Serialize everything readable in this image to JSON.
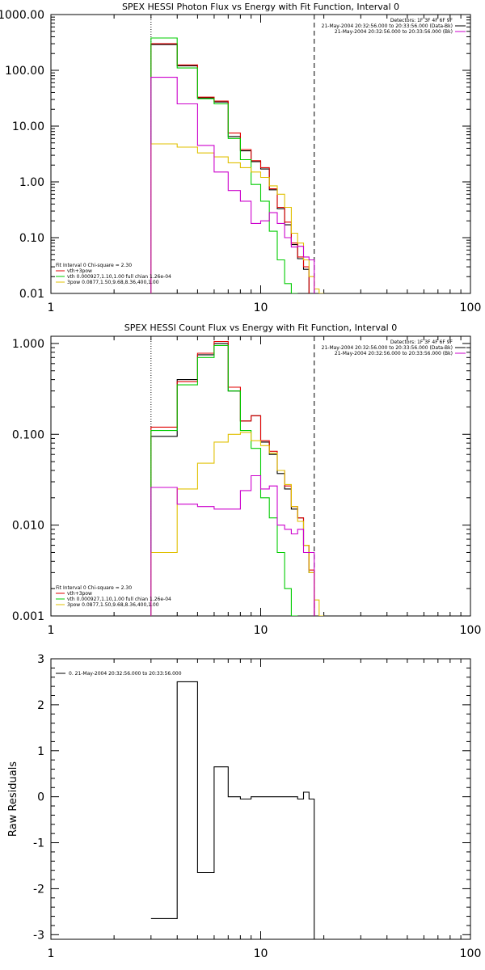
{
  "chart_data": [
    {
      "type": "line",
      "title": "SPEX HESSI Photon Flux vs Energy with Fit Function, Interval 0",
      "xscale": "log",
      "yscale": "log",
      "xlim": [
        1,
        100
      ],
      "ylim": [
        0.01,
        1000
      ],
      "x_ticks": [
        1,
        10,
        100
      ],
      "x_tick_labels": [
        "1",
        "10",
        "100"
      ],
      "y_ticks": [
        0.01,
        0.1,
        1,
        10,
        100,
        1000
      ],
      "y_tick_labels": [
        "0.01",
        "0.10",
        "1.00",
        "10.00",
        "100.00",
        "1000.00"
      ],
      "x_edges": [
        3,
        4,
        5,
        6,
        7,
        8,
        9,
        10,
        11,
        12,
        13,
        14,
        15,
        16,
        17,
        18,
        19,
        20
      ],
      "series": [
        {
          "name": "",
          "color": "#000000",
          "values": [
            290,
            120,
            32,
            27,
            6.5,
            3.6,
            2.3,
            1.7,
            0.72,
            0.33,
            0.17,
            0.075,
            0.042,
            0.027,
            null,
            null,
            null
          ]
        },
        {
          "name": "vth+3pow",
          "color": "#e00000",
          "values": [
            300,
            125,
            33,
            28,
            7.5,
            3.8,
            2.4,
            1.8,
            0.75,
            0.35,
            0.19,
            0.08,
            0.045,
            0.03,
            null,
            null,
            null
          ]
        },
        {
          "name": "vth 0.000927,1.10,1.00  full chian 1.26e-04",
          "color": "#00cc00",
          "values": [
            380,
            110,
            31,
            25,
            6.0,
            2.5,
            0.9,
            0.45,
            0.13,
            0.04,
            0.015,
            0.008,
            null,
            null,
            null,
            null,
            null
          ]
        },
        {
          "name": "3pow 0.0877,1.50,9.68,8.36,400,1.00",
          "color": "#e0c000",
          "values": [
            4.8,
            4.2,
            3.3,
            2.8,
            2.2,
            1.8,
            1.5,
            1.2,
            0.85,
            0.6,
            0.35,
            0.12,
            0.08,
            0.04,
            0.02,
            0.012,
            0.01
          ]
        },
        {
          "name": "",
          "color": "#cc00cc",
          "values": [
            75,
            25,
            4.5,
            1.5,
            0.7,
            0.45,
            0.18,
            0.2,
            0.28,
            0.18,
            0.1,
            0.068,
            0.07,
            0.045,
            0.04,
            null,
            null
          ]
        }
      ],
      "vlines": [
        {
          "x": 3,
          "style": "dotted"
        },
        {
          "x": 18,
          "style": "dashed"
        }
      ],
      "legend_top_right": [
        "Detectors: 1F 3F 4F 6F 9F",
        "21-May-2004 20:32:56.000 to 20:33:56.000 (Data-Bk)",
        "21-May-2004 20:32:56.000 to 20:33:56.000 (Bk)"
      ],
      "legend_bottom_left": [
        "Fit Interval 0   Chi-square = 2.30",
        "vth+3pow",
        "vth 0.000927,1.10,1.00  full chian 1.26e-04",
        "3pow 0.0877,1.50,9.68,8.36,400,1.00"
      ],
      "grid": false
    },
    {
      "type": "line",
      "title": "SPEX HESSI Count Flux vs Energy with Fit Function, Interval 0",
      "xscale": "log",
      "yscale": "log",
      "xlim": [
        1,
        100
      ],
      "ylim": [
        0.001,
        1.2
      ],
      "x_ticks": [
        1,
        10,
        100
      ],
      "x_tick_labels": [
        "1",
        "10",
        "100"
      ],
      "y_ticks": [
        0.001,
        0.01,
        0.1,
        1
      ],
      "y_tick_labels": [
        "0.001",
        "0.010",
        "0.100",
        "1.000"
      ],
      "x_edges": [
        3,
        4,
        5,
        6,
        7,
        8,
        9,
        10,
        11,
        12,
        13,
        14,
        15,
        16,
        17,
        18,
        19,
        20
      ],
      "series": [
        {
          "name": "",
          "color": "#000000",
          "values": [
            0.095,
            0.4,
            0.75,
            1.0,
            0.3,
            0.14,
            0.16,
            0.082,
            0.06,
            0.037,
            0.025,
            0.015,
            0.012,
            0.006,
            0.003,
            null,
            null
          ]
        },
        {
          "name": "vth+3pow",
          "color": "#e00000",
          "values": [
            0.12,
            0.38,
            0.78,
            1.05,
            0.33,
            0.14,
            0.16,
            0.085,
            0.065,
            0.04,
            0.027,
            0.016,
            0.012,
            0.006,
            0.0032,
            null,
            null
          ]
        },
        {
          "name": "vth 0.000927,1.10,1.00  full chian 1.26e-04",
          "color": "#00cc00",
          "values": [
            0.11,
            0.35,
            0.7,
            0.95,
            0.3,
            0.11,
            0.07,
            0.02,
            0.012,
            0.005,
            0.002,
            0.001,
            null,
            null,
            null,
            null,
            null
          ]
        },
        {
          "name": "3pow 0.0877,1.50,9.68,8.36,400,1.00",
          "color": "#e0c000",
          "values": [
            0.005,
            0.025,
            0.048,
            0.082,
            0.1,
            0.105,
            0.085,
            0.075,
            0.062,
            0.04,
            0.028,
            0.016,
            0.011,
            0.006,
            0.003,
            0.0015,
            0.001
          ]
        },
        {
          "name": "",
          "color": "#cc00cc",
          "values": [
            0.026,
            0.017,
            0.016,
            0.015,
            0.015,
            0.024,
            0.035,
            0.025,
            0.027,
            0.01,
            0.009,
            0.008,
            0.009,
            0.005,
            0.005,
            null,
            null
          ]
        }
      ],
      "vlines": [
        {
          "x": 3,
          "style": "dotted"
        },
        {
          "x": 18,
          "style": "dashed"
        }
      ],
      "legend_top_right": [
        "Detectors: 1F 3F 4F 6F 9F",
        "21-May-2004 20:32:56.000 to 20:33:56.000 (Data-Bk)",
        "21-May-2004 20:32:56.000 to 20:33:56.000 (Bk)"
      ],
      "legend_bottom_left": [
        "Fit Interval 0   Chi-square = 2.30",
        "vth+3pow",
        "vth 0.000927,1.10,1.00  full chian 1.26e-04",
        "3pow 0.0877,1.50,9.68,8.36,400,1.00"
      ],
      "grid": false
    },
    {
      "type": "line",
      "title": "",
      "ylabel": "Raw Residuals",
      "xscale": "log",
      "yscale": "linear",
      "xlim": [
        1,
        100
      ],
      "ylim": [
        -3.1,
        3
      ],
      "x_ticks": [
        1,
        10,
        100
      ],
      "x_tick_labels": [
        "1",
        "10",
        "100"
      ],
      "y_ticks": [
        -3,
        -2,
        -1,
        0,
        1,
        2,
        3
      ],
      "y_tick_labels": [
        "-3",
        "-2",
        "-1",
        "0",
        "1",
        "2",
        "3"
      ],
      "x_edges": [
        3,
        4,
        5,
        6,
        7,
        8,
        9,
        10,
        11,
        12,
        13,
        14,
        15,
        16,
        17,
        18
      ],
      "series": [
        {
          "name": "0. 21-May-2004 20:32:56.000 to 20:33:56.000",
          "color": "#000000",
          "values": [
            -2.65,
            2.5,
            -1.65,
            0.65,
            0.0,
            -0.05,
            0.0,
            0.0,
            0.0,
            0.0,
            0.0,
            0.0,
            -0.05,
            0.1,
            -0.05
          ]
        }
      ],
      "legend_top_left": [
        "0. 21-May-2004 20:32:56.000 to 20:33:56.000"
      ],
      "grid": false
    }
  ]
}
